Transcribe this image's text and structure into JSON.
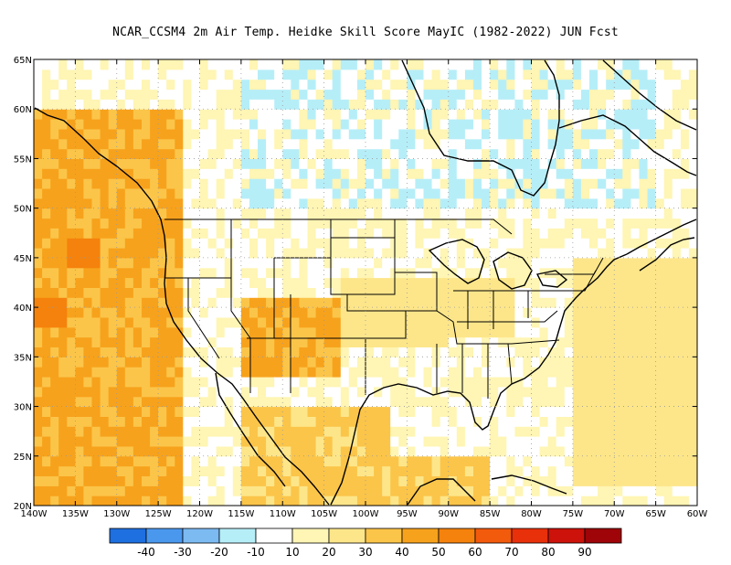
{
  "title": "NCAR_CCSM4  2m Air Temp. Heidke Skill Score MayIC (1982-2022) JUN Fcst",
  "map": {
    "lon_range": [
      -140,
      -60
    ],
    "lat_range": [
      20,
      65
    ],
    "grid": "dotted",
    "x_ticks": [
      {
        "lon": -140,
        "label": "140W"
      },
      {
        "lon": -135,
        "label": "135W"
      },
      {
        "lon": -130,
        "label": "130W"
      },
      {
        "lon": -125,
        "label": "125W"
      },
      {
        "lon": -120,
        "label": "120W"
      },
      {
        "lon": -115,
        "label": "115W"
      },
      {
        "lon": -110,
        "label": "110W"
      },
      {
        "lon": -105,
        "label": "105W"
      },
      {
        "lon": -100,
        "label": "100W"
      },
      {
        "lon": -95,
        "label": "95W"
      },
      {
        "lon": -90,
        "label": "90W"
      },
      {
        "lon": -85,
        "label": "85W"
      },
      {
        "lon": -80,
        "label": "80W"
      },
      {
        "lon": -75,
        "label": "75W"
      },
      {
        "lon": -70,
        "label": "70W"
      },
      {
        "lon": -65,
        "label": "65W"
      },
      {
        "lon": -60,
        "label": "60W"
      }
    ],
    "y_ticks": [
      {
        "lat": 20,
        "label": "20N"
      },
      {
        "lat": 25,
        "label": "25N"
      },
      {
        "lat": 30,
        "label": "30N"
      },
      {
        "lat": 35,
        "label": "35N"
      },
      {
        "lat": 40,
        "label": "40N"
      },
      {
        "lat": 45,
        "label": "45N"
      },
      {
        "lat": 50,
        "label": "50N"
      },
      {
        "lat": 55,
        "label": "55N"
      },
      {
        "lat": 60,
        "label": "60N"
      },
      {
        "lat": 65,
        "label": "65N"
      }
    ]
  },
  "colorbar": {
    "colors": [
      "#1e6fe0",
      "#4a98ee",
      "#7cbaf2",
      "#b6eef8",
      "#ffffff",
      "#fff5b4",
      "#fde68a",
      "#fbc54a",
      "#f7a21c",
      "#f5820c",
      "#f25a0c",
      "#e8300a",
      "#cc120a",
      "#9e0408"
    ],
    "labels": [
      "-40",
      "-30",
      "-20",
      "-10",
      "10",
      "20",
      "30",
      "40",
      "50",
      "60",
      "70",
      "80",
      "90"
    ]
  },
  "chart_data": {
    "type": "heatmap",
    "title": "NCAR_CCSM4  2m Air Temp. Heidke Skill Score MayIC (1982-2022) JUN Fcst",
    "x_range": [
      -140,
      -60
    ],
    "y_range": [
      20,
      65
    ],
    "color_levels": [
      -40,
      -30,
      -20,
      -10,
      10,
      20,
      30,
      40,
      50,
      60,
      70,
      80,
      90
    ],
    "regions": [
      {
        "area": "Northeast Pacific ocean (offshore west coast)",
        "lon": [
          -140,
          -122
        ],
        "lat": [
          20,
          60
        ],
        "level": "30-50"
      },
      {
        "area": "Pacific near 45N 135W",
        "lon": [
          -136,
          -132
        ],
        "lat": [
          44,
          47
        ],
        "level": "50-60"
      },
      {
        "area": "Pacific near 40N 138W",
        "lon": [
          -140,
          -136
        ],
        "lat": [
          38,
          41
        ],
        "level": "50-60"
      },
      {
        "area": "Southwest US / Colorado Plateau",
        "lon": [
          -115,
          -103
        ],
        "lat": [
          33,
          41
        ],
        "level": "30-50"
      },
      {
        "area": "Central Plains (Kansas/Nebraska/Missouri)",
        "lon": [
          -103,
          -82
        ],
        "lat": [
          36,
          43
        ],
        "level": "20-30"
      },
      {
        "area": "Mexico / Gulf of California",
        "lon": [
          -115,
          -97
        ],
        "lat": [
          20,
          30
        ],
        "level": "20-40"
      },
      {
        "area": "Southwest Gulf of Mexico / Yucatan",
        "lon": [
          -97,
          -85
        ],
        "lat": [
          20,
          25
        ],
        "level": "30-40"
      },
      {
        "area": "Southeast US",
        "lon": [
          -90,
          -76
        ],
        "lat": [
          30,
          37
        ],
        "level": "10-20"
      },
      {
        "area": "Northwest Atlantic",
        "lon": [
          -75,
          -60
        ],
        "lat": [
          22,
          45
        ],
        "level": "20-30"
      },
      {
        "area": "Canada interior",
        "lon": [
          -115,
          -70
        ],
        "lat": [
          45,
          65
        ],
        "level": "10-20"
      },
      {
        "area": "Canada negative patches",
        "lon": [
          -115,
          -65
        ],
        "lat": [
          50,
          65
        ],
        "level": "-10 to 0"
      }
    ]
  }
}
